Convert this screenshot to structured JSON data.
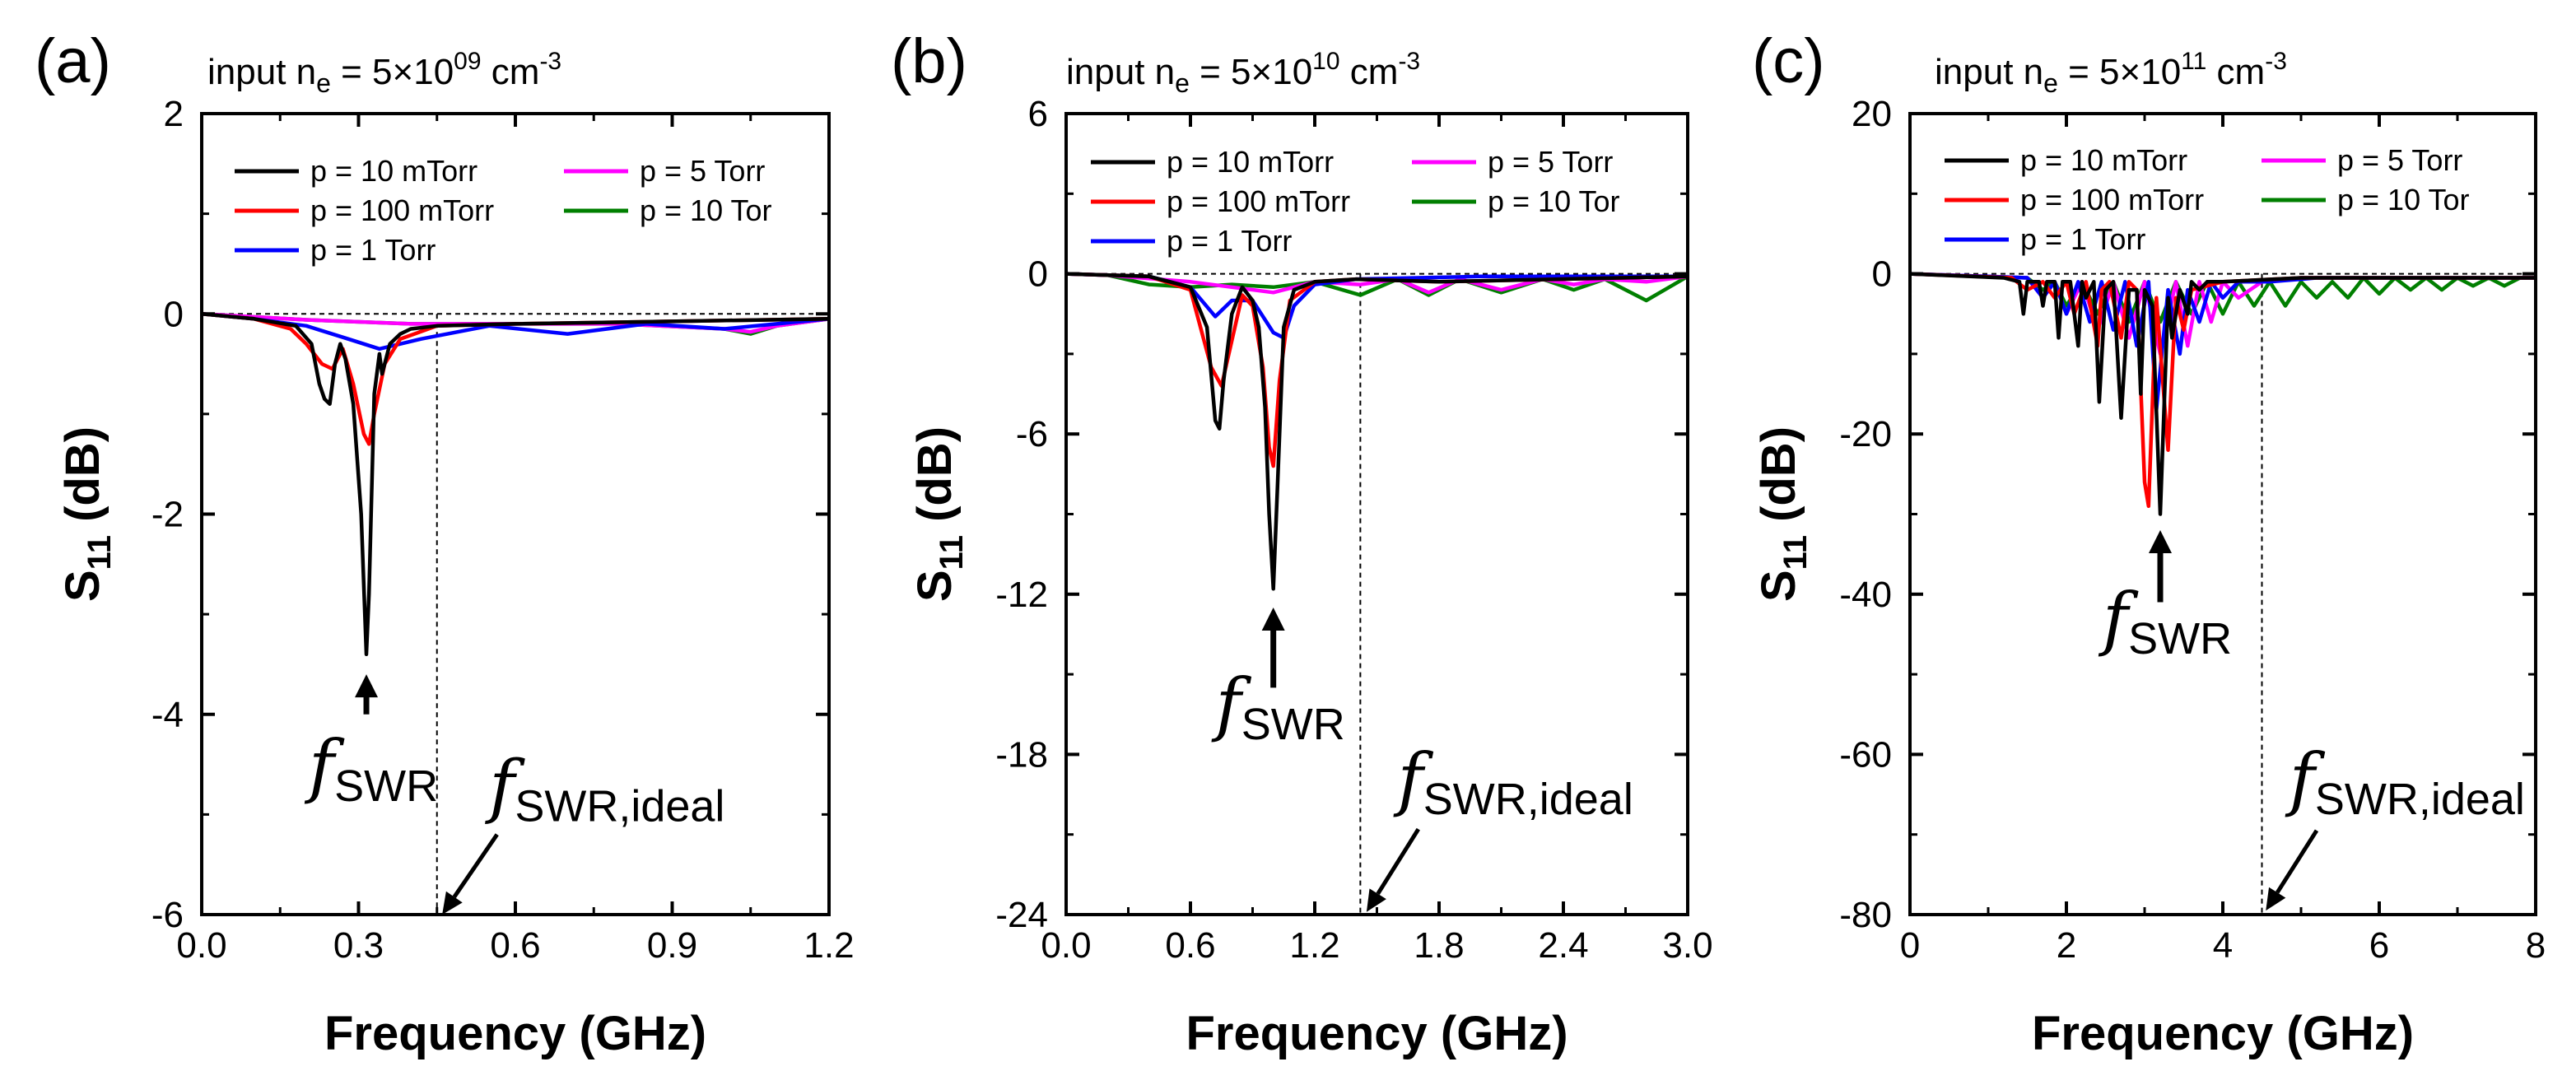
{
  "chart_data": [
    {
      "type": "line",
      "panel_label": "(a)",
      "ne_label": {
        "prefix": "input n",
        "sub": "e",
        "mid": " = 5×10",
        "sup": "09",
        "unit": " cm",
        "unit_sup": "-3"
      },
      "xlabel": "Frequency (GHz)",
      "ylabel": {
        "main": "S",
        "sub": "11",
        "rest": " (dB)"
      },
      "xlim": [
        0.0,
        1.2
      ],
      "ylim": [
        -6,
        2
      ],
      "xticks": [
        0.0,
        0.3,
        0.6,
        0.9,
        1.2
      ],
      "xtick_labels": [
        "0.0",
        "0.3",
        "0.6",
        "0.9",
        "1.2"
      ],
      "yticks": [
        2,
        0,
        -2,
        -4,
        -6
      ],
      "ytick_labels": [
        "2",
        "0",
        "-2",
        "-4",
        "-6"
      ],
      "ideal_line_x": 0.45,
      "swr_annotation": {
        "x": 0.315,
        "tip_y": -3.6,
        "tail_y": -4.0,
        "text_y": -4.75
      },
      "ideal_annotation": {
        "tip_x": 0.46,
        "tip_y": -6.0,
        "tail_x": 0.565,
        "tail_y": -5.2,
        "text_x": 0.55,
        "text_y": -4.95
      },
      "series": [
        {
          "name": "p = 10 mTorr",
          "color": "#000000",
          "x": [
            0.0,
            0.1,
            0.18,
            0.21,
            0.225,
            0.235,
            0.245,
            0.255,
            0.265,
            0.275,
            0.29,
            0.305,
            0.315,
            0.32,
            0.33,
            0.34,
            0.345,
            0.36,
            0.38,
            0.4,
            0.45,
            0.6,
            1.2
          ],
          "y": [
            0.0,
            -0.05,
            -0.12,
            -0.3,
            -0.7,
            -0.85,
            -0.9,
            -0.5,
            -0.3,
            -0.45,
            -0.9,
            -2.0,
            -3.4,
            -2.8,
            -0.8,
            -0.4,
            -0.6,
            -0.3,
            -0.2,
            -0.15,
            -0.12,
            -0.1,
            -0.05
          ]
        },
        {
          "name": "p = 100 mTorr",
          "color": "#ff0000",
          "x": [
            0.0,
            0.1,
            0.17,
            0.2,
            0.23,
            0.25,
            0.27,
            0.29,
            0.31,
            0.32,
            0.33,
            0.35,
            0.38,
            0.45,
            0.6,
            1.2
          ],
          "y": [
            0.0,
            -0.05,
            -0.15,
            -0.3,
            -0.5,
            -0.55,
            -0.35,
            -0.7,
            -1.2,
            -1.3,
            -1.0,
            -0.5,
            -0.25,
            -0.12,
            -0.1,
            -0.05
          ]
        },
        {
          "name": "p = 1 Torr",
          "color": "#0000ff",
          "x": [
            0.0,
            0.1,
            0.2,
            0.28,
            0.34,
            0.42,
            0.55,
            0.7,
            0.85,
            1.0,
            1.1,
            1.2
          ],
          "y": [
            0.0,
            -0.05,
            -0.12,
            -0.25,
            -0.35,
            -0.25,
            -0.12,
            -0.2,
            -0.1,
            -0.15,
            -0.1,
            -0.05
          ]
        },
        {
          "name": "p = 5 Torr",
          "color": "#ff00ff",
          "x": [
            0.0,
            0.2,
            0.4,
            0.6,
            0.8,
            1.0,
            1.05,
            1.1,
            1.2
          ],
          "y": [
            0.0,
            -0.06,
            -0.1,
            -0.1,
            -0.1,
            -0.15,
            -0.18,
            -0.12,
            -0.05
          ]
        },
        {
          "name": "p = 10 Tor",
          "color": "#007f00",
          "x": [
            0.0,
            0.2,
            0.4,
            0.6,
            0.8,
            1.0,
            1.05,
            1.1,
            1.2
          ],
          "y": [
            0.0,
            -0.06,
            -0.1,
            -0.1,
            -0.1,
            -0.15,
            -0.2,
            -0.12,
            -0.05
          ]
        }
      ]
    },
    {
      "type": "line",
      "panel_label": "(b)",
      "ne_label": {
        "prefix": "input n",
        "sub": "e",
        "mid": " = 5×10",
        "sup": "10",
        "unit": " cm",
        "unit_sup": "-3"
      },
      "xlabel": "Frequency (GHz)",
      "ylabel": {
        "main": "S",
        "sub": "11",
        "rest": " (dB)"
      },
      "xlim": [
        0.0,
        3.0
      ],
      "ylim": [
        -24,
        6
      ],
      "xticks": [
        0.0,
        0.6,
        1.2,
        1.8,
        2.4,
        3.0
      ],
      "xtick_labels": [
        "0.0",
        "0.6",
        "1.2",
        "1.8",
        "2.4",
        "3.0"
      ],
      "yticks": [
        6,
        0,
        -6,
        -12,
        -18,
        -24
      ],
      "ytick_labels": [
        "6",
        "0",
        "-6",
        "-12",
        "-18",
        "-24"
      ],
      "ideal_line_x": 1.42,
      "swr_annotation": {
        "x": 1.0,
        "tip_y": -12.5,
        "tail_y": -15.5,
        "text_y": -17.0
      },
      "ideal_annotation": {
        "tip_x": 1.45,
        "tip_y": -23.9,
        "tail_x": 1.7,
        "tail_y": -20.8,
        "text_x": 1.6,
        "text_y": -19.8
      },
      "series": [
        {
          "name": "p = 10 mTorr",
          "color": "#000000",
          "x": [
            0.0,
            0.4,
            0.6,
            0.68,
            0.72,
            0.74,
            0.76,
            0.8,
            0.85,
            0.9,
            0.93,
            0.96,
            0.98,
            1.0,
            1.02,
            1.05,
            1.1,
            1.2,
            1.4,
            1.8,
            3.0
          ],
          "y": [
            0.0,
            -0.1,
            -0.5,
            -2.0,
            -5.5,
            -5.8,
            -4.0,
            -1.5,
            -0.5,
            -1.0,
            -2.0,
            -5.0,
            -9.0,
            -11.8,
            -8.0,
            -2.0,
            -0.6,
            -0.3,
            -0.2,
            -0.3,
            -0.1
          ]
        },
        {
          "name": "p = 100 mTorr",
          "color": "#ff0000",
          "x": [
            0.0,
            0.4,
            0.6,
            0.7,
            0.75,
            0.8,
            0.85,
            0.9,
            0.95,
            0.98,
            1.0,
            1.03,
            1.08,
            1.2,
            1.4,
            1.8,
            3.0
          ],
          "y": [
            0.0,
            -0.1,
            -0.6,
            -3.5,
            -4.2,
            -2.5,
            -0.8,
            -1.2,
            -3.5,
            -6.5,
            -7.2,
            -4.0,
            -1.0,
            -0.3,
            -0.2,
            -0.3,
            -0.1
          ]
        },
        {
          "name": "p = 1 Torr",
          "color": "#0000ff",
          "x": [
            0.0,
            0.4,
            0.6,
            0.72,
            0.8,
            0.9,
            1.0,
            1.05,
            1.1,
            1.2,
            1.4,
            2.0,
            3.0
          ],
          "y": [
            0.0,
            -0.1,
            -0.5,
            -1.6,
            -1.0,
            -1.0,
            -2.2,
            -2.4,
            -1.2,
            -0.4,
            -0.2,
            -0.1,
            -0.1
          ]
        },
        {
          "name": "p = 5 Torr",
          "color": "#ff00ff",
          "x": [
            0.0,
            0.2,
            0.6,
            0.8,
            1.0,
            1.2,
            1.42,
            1.6,
            1.75,
            1.9,
            2.1,
            2.3,
            2.45,
            2.6,
            2.8,
            3.0
          ],
          "y": [
            0.0,
            -0.05,
            -0.3,
            -0.5,
            -0.7,
            -0.3,
            -0.4,
            -0.2,
            -0.7,
            -0.2,
            -0.6,
            -0.2,
            -0.4,
            -0.2,
            -0.3,
            -0.1
          ]
        },
        {
          "name": "p = 10 Tor",
          "color": "#007f00",
          "x": [
            0.0,
            0.2,
            0.4,
            0.6,
            0.8,
            1.0,
            1.2,
            1.42,
            1.6,
            1.75,
            1.9,
            2.1,
            2.3,
            2.45,
            2.6,
            2.8,
            3.0
          ],
          "y": [
            0.0,
            -0.05,
            -0.4,
            -0.5,
            -0.4,
            -0.5,
            -0.3,
            -0.8,
            -0.2,
            -0.8,
            -0.2,
            -0.7,
            -0.2,
            -0.6,
            -0.2,
            -1.0,
            -0.1
          ]
        }
      ]
    },
    {
      "type": "line",
      "panel_label": "(c)",
      "ne_label": {
        "prefix": "input n",
        "sub": "e",
        "mid": " = 5×10",
        "sup": "11",
        "unit": " cm",
        "unit_sup": "-3"
      },
      "xlabel": "Frequency (GHz)",
      "ylabel": {
        "main": "S",
        "sub": "11",
        "rest": " (dB)"
      },
      "xlim": [
        0,
        8
      ],
      "ylim": [
        -80,
        20
      ],
      "xticks": [
        0,
        2,
        4,
        6,
        8
      ],
      "xtick_labels": [
        "0",
        "2",
        "4",
        "6",
        "8"
      ],
      "yticks": [
        20,
        0,
        -20,
        -40,
        -60,
        -80
      ],
      "ytick_labels": [
        "20",
        "0",
        "-20",
        "-40",
        "-60",
        "-80"
      ],
      "ideal_line_x": 4.5,
      "swr_annotation": {
        "x": 3.2,
        "tip_y": -32.0,
        "tail_y": -41.0,
        "text_y": -46.0
      },
      "ideal_annotation": {
        "tip_x": 4.55,
        "tip_y": -79.5,
        "tail_x": 5.2,
        "tail_y": -69.5,
        "text_x": 4.85,
        "text_y": -66.0
      },
      "series": [
        {
          "name": "p = 10 mTorr",
          "color": "#000000",
          "x": [
            0,
            1.2,
            1.4,
            1.45,
            1.5,
            1.65,
            1.7,
            1.75,
            1.85,
            1.9,
            1.95,
            2.05,
            2.15,
            2.2,
            2.25,
            2.35,
            2.42,
            2.5,
            2.6,
            2.7,
            2.8,
            2.9,
            2.95,
            3.0,
            3.1,
            3.2,
            3.3,
            3.35,
            3.45,
            3.55,
            3.6,
            3.7,
            3.8,
            4.0,
            5.0,
            8.0
          ],
          "y": [
            0,
            -0.5,
            -1,
            -5,
            -1,
            -1,
            -4,
            -1,
            -1,
            -8,
            -1,
            -1,
            -9,
            -1,
            -3,
            -1,
            -16,
            -2,
            -1,
            -18,
            -2,
            -2,
            -15,
            -2,
            -4,
            -30,
            -3,
            -8,
            -2,
            -5,
            -1,
            -2,
            -1,
            -1,
            -0.5,
            -0.5
          ]
        },
        {
          "name": "p = 100 mTorr",
          "color": "#ff0000",
          "x": [
            0,
            1.3,
            1.5,
            1.7,
            1.85,
            2.0,
            2.1,
            2.25,
            2.4,
            2.45,
            2.55,
            2.7,
            2.8,
            2.9,
            3.0,
            3.05,
            3.15,
            3.3,
            3.4,
            3.5,
            3.6,
            4.0,
            5.0,
            8.0
          ],
          "y": [
            0,
            -0.5,
            -2,
            -1,
            -3,
            -1,
            -5,
            -1,
            -9,
            -2,
            -1,
            -8,
            -1,
            -2,
            -26,
            -29,
            -3,
            -22,
            -3,
            -7,
            -2,
            -1,
            -0.5,
            -0.5
          ]
        },
        {
          "name": "p = 1 Torr",
          "color": "#0000ff",
          "x": [
            0,
            1.5,
            1.7,
            1.85,
            2.0,
            2.15,
            2.3,
            2.45,
            2.6,
            2.75,
            2.9,
            3.05,
            3.15,
            3.3,
            3.45,
            3.55,
            3.7,
            3.85,
            4.0,
            4.2,
            4.6,
            5.2,
            6.0,
            8.0
          ],
          "y": [
            0,
            -0.5,
            -3,
            -1,
            -5,
            -1,
            -6,
            -1,
            -7,
            -1,
            -9,
            -1,
            -17,
            -2,
            -10,
            -2,
            -6,
            -1,
            -3,
            -1,
            -1,
            -0.5,
            -0.5,
            -0.5
          ]
        },
        {
          "name": "p = 5 Torr",
          "color": "#ff00ff",
          "x": [
            0,
            1.5,
            1.7,
            1.85,
            2.0,
            2.2,
            2.4,
            2.6,
            2.8,
            3.0,
            3.2,
            3.4,
            3.55,
            3.7,
            3.85,
            4.0,
            4.2,
            4.5,
            5.0,
            6.0,
            8.0
          ],
          "y": [
            0,
            -0.5,
            -3,
            -1,
            -5,
            -1,
            -7,
            -1,
            -8,
            -1,
            -10,
            -1,
            -9,
            -1,
            -6,
            -1,
            -3,
            -1,
            -0.5,
            -0.5,
            -0.5
          ]
        },
        {
          "name": "p = 10 Tor",
          "color": "#007f00",
          "x": [
            0,
            1.5,
            1.7,
            1.85,
            2.0,
            2.2,
            2.4,
            2.6,
            2.8,
            3.0,
            3.2,
            3.4,
            3.6,
            3.8,
            4.0,
            4.2,
            4.4,
            4.6,
            4.8,
            5.0,
            5.2,
            5.4,
            5.6,
            5.8,
            6.0,
            6.2,
            6.4,
            6.6,
            6.8,
            7.0,
            7.2,
            7.4,
            7.6,
            7.8,
            8.0
          ],
          "y": [
            0,
            -0.5,
            -2,
            -1,
            -4,
            -1,
            -5,
            -1,
            -6,
            -1,
            -6,
            -1,
            -5,
            -1,
            -5,
            -1,
            -4,
            -1,
            -4,
            -1,
            -3,
            -1,
            -3,
            -0.5,
            -2.5,
            -0.5,
            -2,
            -0.5,
            -2,
            -0.5,
            -1.5,
            -0.5,
            -1.5,
            -0.5,
            -0.5
          ]
        }
      ]
    }
  ]
}
